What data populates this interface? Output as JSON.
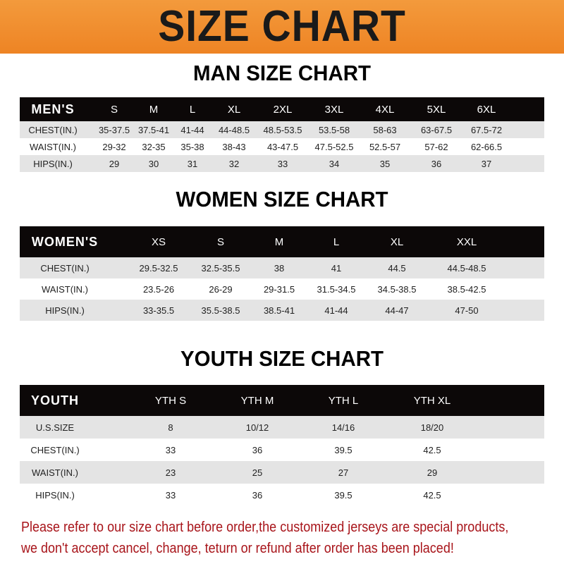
{
  "banner": {
    "title": "SIZE CHART",
    "color": "#ee8424"
  },
  "men": {
    "title": "MAN SIZE CHART",
    "header": [
      "MEN'S",
      "S",
      "M",
      "L",
      "XL",
      "2XL",
      "3XL",
      "4XL",
      "5XL",
      "6XL"
    ],
    "rows": [
      [
        "CHEST(IN.)",
        "35-37.5",
        "37.5-41",
        "41-44",
        "44-48.5",
        "48.5-53.5",
        "53.5-58",
        "58-63",
        "63-67.5",
        "67.5-72"
      ],
      [
        "WAIST(IN.)",
        "29-32",
        "32-35",
        "35-38",
        "38-43",
        "43-47.5",
        "47.5-52.5",
        "52.5-57",
        "57-62",
        "62-66.5"
      ],
      [
        "HIPS(IN.)",
        "29",
        "30",
        "31",
        "32",
        "33",
        "34",
        "35",
        "36",
        "37"
      ]
    ]
  },
  "women": {
    "title": "WOMEN SIZE CHART",
    "header": [
      "WOMEN'S",
      "XS",
      "S",
      "M",
      "L",
      "XL",
      "XXL"
    ],
    "rows": [
      [
        "CHEST(IN.)",
        "29.5-32.5",
        "32.5-35.5",
        "38",
        "41",
        "44.5",
        "44.5-48.5"
      ],
      [
        "WAIST(IN.)",
        "23.5-26",
        "26-29",
        "29-31.5",
        "31.5-34.5",
        "34.5-38.5",
        "38.5-42.5"
      ],
      [
        "HIPS(IN.)",
        "33-35.5",
        "35.5-38.5",
        "38.5-41",
        "41-44",
        "44-47",
        "47-50"
      ]
    ]
  },
  "youth": {
    "title": "YOUTH SIZE CHART",
    "header": [
      "YOUTH",
      "YTH S",
      "YTH M",
      "YTH L",
      "YTH XL"
    ],
    "rows": [
      [
        "U.S.SIZE",
        "8",
        "10/12",
        "14/16",
        "18/20"
      ],
      [
        "CHEST(IN.)",
        "33",
        "36",
        "39.5",
        "42.5"
      ],
      [
        "WAIST(IN.)",
        "23",
        "25",
        "27",
        "29"
      ],
      [
        "HIPS(IN.)",
        "33",
        "36",
        "39.5",
        "42.5"
      ]
    ]
  },
  "footer": {
    "line1": "Please refer to our size chart before order,the customized jerseys are special products,",
    "line2": "we don't accept cancel, change, teturn or refund after order has been placed!",
    "color": "#a8141a"
  }
}
